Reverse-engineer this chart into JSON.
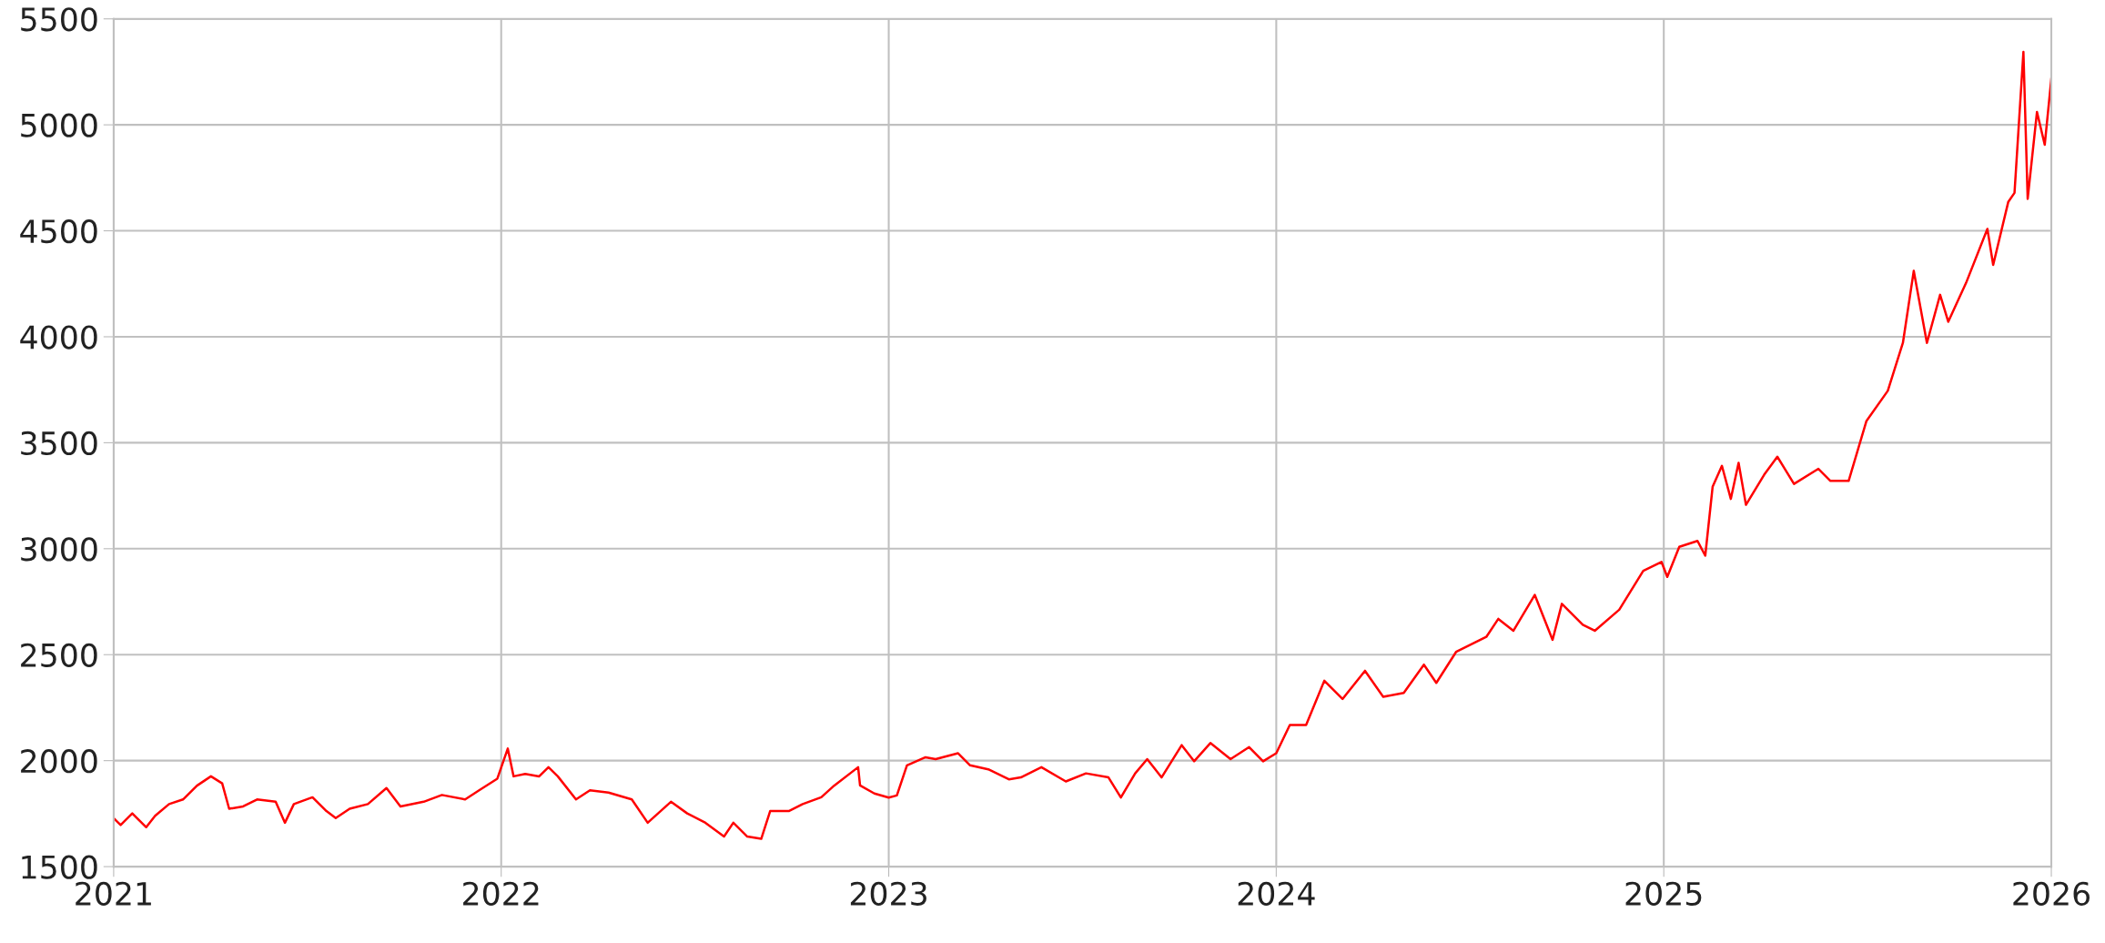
{
  "chart_data": {
    "type": "line",
    "x": [
      2021.0,
      2021.018,
      2021.048,
      2021.084,
      2021.107,
      2021.143,
      2021.179,
      2021.215,
      2021.251,
      2021.28,
      2021.298,
      2021.334,
      2021.37,
      2021.418,
      2021.442,
      2021.465,
      2021.513,
      2021.549,
      2021.573,
      2021.609,
      2021.656,
      2021.704,
      2021.74,
      2021.8,
      2021.847,
      2021.907,
      2021.943,
      2021.99,
      2022.017,
      2022.032,
      2022.062,
      2022.098,
      2022.122,
      2022.146,
      2022.193,
      2022.229,
      2022.277,
      2022.337,
      2022.378,
      2022.438,
      2022.48,
      2022.527,
      2022.575,
      2022.599,
      2022.635,
      2022.671,
      2022.694,
      2022.742,
      2022.778,
      2022.826,
      2022.859,
      2022.921,
      2022.926,
      2022.963,
      2023.0,
      2023.021,
      2023.047,
      2023.095,
      2023.121,
      2023.179,
      2023.21,
      2023.257,
      2023.31,
      2023.341,
      2023.394,
      2023.457,
      2023.509,
      2023.567,
      2023.599,
      2023.636,
      2023.667,
      2023.704,
      2023.756,
      2023.788,
      2023.83,
      2023.882,
      2023.93,
      2023.966,
      2024.0,
      2024.035,
      2024.077,
      2024.124,
      2024.171,
      2024.229,
      2024.276,
      2024.329,
      2024.381,
      2024.413,
      2024.464,
      2024.542,
      2024.573,
      2024.612,
      2024.667,
      2024.713,
      2024.737,
      2024.791,
      2024.822,
      2024.885,
      2024.947,
      2024.994,
      2025.009,
      2025.04,
      2025.087,
      2025.107,
      2025.126,
      2025.15,
      2025.173,
      2025.193,
      2025.212,
      2025.259,
      2025.293,
      2025.336,
      2025.399,
      2025.43,
      2025.477,
      2025.523,
      2025.578,
      2025.617,
      2025.645,
      2025.679,
      2025.713,
      2025.734,
      2025.78,
      2025.835,
      2025.85,
      2025.889,
      2025.905,
      2025.928,
      2025.939,
      2025.963,
      2025.983,
      2026.0
    ],
    "series": [
      {
        "color": "#ff0000",
        "values": [
          1729,
          1696,
          1751,
          1686,
          1740,
          1795,
          1817,
          1882,
          1926,
          1893,
          1773,
          1784,
          1817,
          1806,
          1707,
          1795,
          1827,
          1762,
          1729,
          1773,
          1795,
          1871,
          1784,
          1806,
          1838,
          1817,
          1860,
          1915,
          2057,
          1926,
          1937,
          1926,
          1969,
          1926,
          1817,
          1860,
          1849,
          1817,
          1707,
          1806,
          1751,
          1707,
          1642,
          1707,
          1642,
          1631,
          1762,
          1762,
          1795,
          1827,
          1882,
          1969,
          1883,
          1845,
          1826,
          1836,
          1978,
          2016,
          2007,
          2035,
          1978,
          1959,
          1912,
          1921,
          1969,
          1902,
          1940,
          1921,
          1826,
          1940,
          2007,
          1921,
          2073,
          1997,
          2083,
          2007,
          2064,
          1997,
          2035,
          2168,
          2168,
          2377,
          2291,
          2424,
          2301,
          2320,
          2453,
          2367,
          2513,
          2584,
          2669,
          2613,
          2782,
          2570,
          2740,
          2641,
          2613,
          2712,
          2896,
          2938,
          2867,
          3009,
          3037,
          2967,
          3292,
          3391,
          3235,
          3405,
          3207,
          3349,
          3434,
          3306,
          3377,
          3320,
          3320,
          3603,
          3745,
          3971,
          4311,
          3971,
          4198,
          4071,
          4254,
          4509,
          4339,
          4637,
          4679,
          5344,
          4651,
          5061,
          4906,
          5217
        ]
      }
    ],
    "xlim": [
      2021,
      2026
    ],
    "xticks": [
      2021,
      2022,
      2023,
      2024,
      2025,
      2026
    ],
    "ylim": [
      1500,
      5500
    ],
    "yticks": [
      1500,
      2000,
      2500,
      3000,
      3500,
      4000,
      4500,
      5000,
      5500
    ],
    "grid": true,
    "marker": "none",
    "line_style": "solid"
  }
}
